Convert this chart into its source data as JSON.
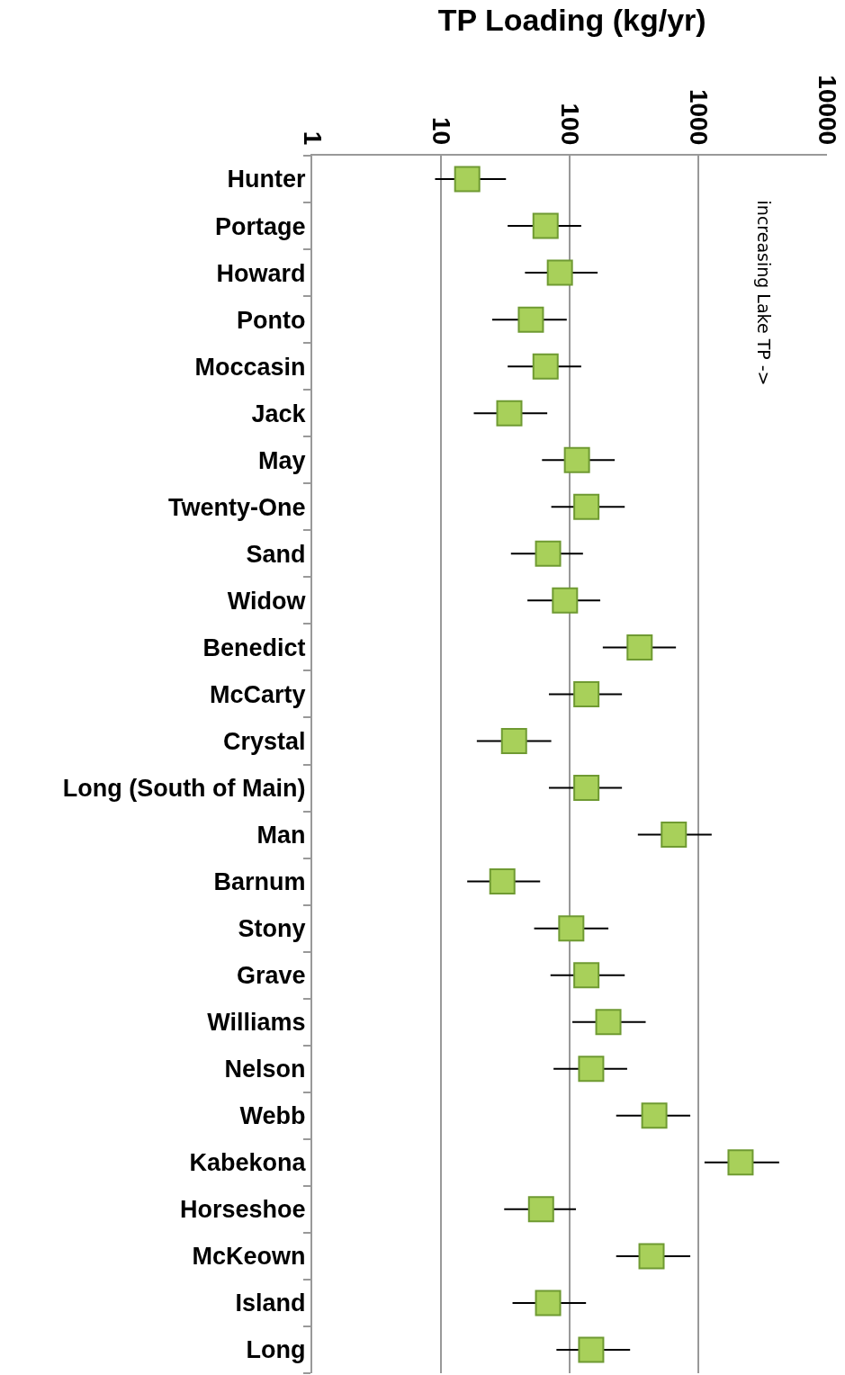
{
  "chart_data": {
    "type": "scatter",
    "orientation": "horizontal",
    "title": "TP Loading (kg/yr)",
    "log": "x",
    "categories": [
      "Hunter",
      "Portage",
      "Howard",
      "Ponto",
      "Moccasin",
      "Jack",
      "May",
      "Twenty-One",
      "Sand",
      "Widow",
      "Benedict",
      "McCarty",
      "Crystal",
      "Long (South of Main)",
      "Man",
      "Barnum",
      "Stony",
      "Grave",
      "Williams",
      "Nelson",
      "Webb",
      "Kabekona",
      "Horseshoe",
      "McKeown",
      "Island",
      "Long"
    ],
    "series": [
      {
        "color": "#a8d05a",
        "values": [
          16,
          65,
          84,
          50,
          65,
          34,
          114,
          135,
          68,
          92,
          350,
          135,
          37,
          135,
          645,
          30,
          103,
          135,
          200,
          147,
          455,
          2130,
          60,
          433,
          68,
          147
        ],
        "errors": [
          [
            9,
            32
          ],
          [
            33,
            123
          ],
          [
            45,
            165
          ],
          [
            25,
            95
          ],
          [
            33,
            123
          ],
          [
            18,
            67
          ],
          [
            61,
            224
          ],
          [
            72,
            268
          ],
          [
            35,
            127
          ],
          [
            47,
            173
          ],
          [
            181,
            670
          ],
          [
            69,
            255
          ],
          [
            19,
            72
          ],
          [
            69,
            255
          ],
          [
            339,
            1270
          ],
          [
            16,
            59
          ],
          [
            53,
            200
          ],
          [
            71,
            268
          ],
          [
            105,
            390
          ],
          [
            75,
            280
          ],
          [
            230,
            866
          ],
          [
            1117,
            4250
          ],
          [
            31,
            112
          ],
          [
            230,
            866
          ],
          [
            36,
            134
          ],
          [
            79,
            295
          ]
        ]
      }
    ],
    "xlim": [
      1,
      10000
    ],
    "xticks": [
      1,
      10,
      100,
      1000,
      10000
    ],
    "grid": "x",
    "marker": "square",
    "annotations": [
      "increasing Lake TP ->"
    ]
  }
}
